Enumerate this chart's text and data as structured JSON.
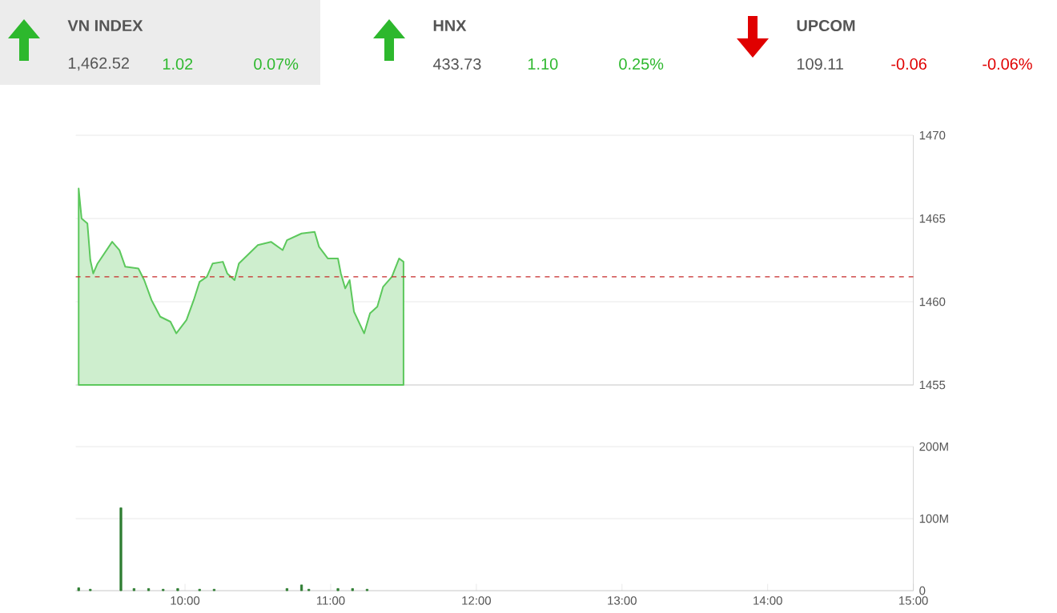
{
  "chart_data": [
    {
      "type": "other",
      "annotations": [
        "VN INDEX",
        "1,462.52",
        "1.02",
        "0.07%",
        "HNX",
        "433.73",
        "1.10",
        "0.25%",
        "UPCOM",
        "109.11",
        "-0.06",
        "-0.06%"
      ],
      "colors": [
        "#2db82d",
        "#2db82d",
        "#e00000"
      ]
    },
    {
      "type": "area",
      "color": "#5cc85c",
      "x": [
        9.27,
        9.29,
        9.33,
        9.35,
        9.37,
        9.4,
        9.5,
        9.55,
        9.59,
        9.68,
        9.72,
        9.77,
        9.83,
        9.9,
        9.94,
        10.01,
        10.06,
        10.1,
        10.15,
        10.19,
        10.26,
        10.29,
        10.34,
        10.37,
        10.5,
        10.59,
        10.67,
        10.7,
        10.8,
        10.89,
        10.92,
        10.98,
        11.05,
        11.07,
        11.1,
        11.13,
        11.16,
        11.23,
        11.27,
        11.32,
        11.36,
        11.42,
        11.47,
        11.5
      ],
      "values": [
        1466.8,
        1465.0,
        1464.7,
        1462.5,
        1461.7,
        1462.3,
        1463.6,
        1463.1,
        1462.1,
        1462.0,
        1461.3,
        1460.1,
        1459.1,
        1458.8,
        1458.1,
        1458.9,
        1460.1,
        1461.2,
        1461.5,
        1462.3,
        1462.4,
        1461.7,
        1461.3,
        1462.3,
        1463.4,
        1463.6,
        1463.1,
        1463.7,
        1464.1,
        1464.2,
        1463.3,
        1462.6,
        1462.6,
        1461.7,
        1460.8,
        1461.3,
        1459.4,
        1458.1,
        1459.3,
        1459.7,
        1460.9,
        1461.5,
        1462.6,
        1462.4
      ],
      "xlim": [
        9.25,
        15
      ],
      "ylim": [
        1455,
        1470
      ],
      "yticks": [
        1455,
        1460,
        1465,
        1470
      ],
      "tick_labels": "y",
      "grid": "y",
      "ref_lines": [
        {
          "axis": "y",
          "value": 1461.5,
          "color": "#c62828",
          "line_style": "dashed"
        }
      ]
    },
    {
      "type": "bar",
      "color": "#2e7d32",
      "x": [
        9.27,
        9.35,
        9.56,
        9.65,
        9.75,
        9.85,
        9.95,
        10.1,
        10.2,
        10.7,
        10.8,
        10.85,
        11.05,
        11.15,
        11.25
      ],
      "values": [
        4,
        2,
        115,
        3,
        3,
        2,
        3,
        2,
        2,
        3,
        8,
        2,
        3,
        3,
        2
      ],
      "xlim": [
        9.25,
        15
      ],
      "xticks": [
        {
          "value": 10,
          "label": "10:00"
        },
        {
          "value": 11,
          "label": "11:00"
        },
        {
          "value": 12,
          "label": "12:00"
        },
        {
          "value": 13,
          "label": "13:00"
        },
        {
          "value": 14,
          "label": "14:00"
        },
        {
          "value": 15,
          "label": "15:00"
        }
      ],
      "ylim": [
        0,
        200
      ],
      "yticks": [
        0,
        {
          "value": 100,
          "label": "100M"
        },
        {
          "value": 200,
          "label": "200M"
        }
      ],
      "grid": "y"
    }
  ]
}
